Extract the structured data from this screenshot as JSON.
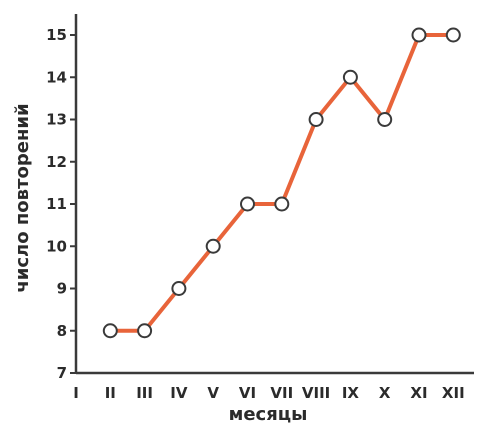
{
  "chart_data": {
    "type": "line",
    "xlabel": "месяцы",
    "ylabel": "число повторений",
    "categories": [
      "I",
      "II",
      "III",
      "IV",
      "V",
      "VI",
      "VII",
      "VIII",
      "IX",
      "X",
      "XI",
      "XII"
    ],
    "ylim": [
      7,
      15
    ],
    "yticks": [
      7,
      8,
      9,
      10,
      11,
      12,
      13,
      14,
      15
    ],
    "grid": false,
    "series": [
      {
        "x": [
          "II",
          "III",
          "IV",
          "V",
          "VI",
          "VII",
          "VIII",
          "IX",
          "X",
          "XI",
          "XII"
        ],
        "values": [
          8,
          8,
          9,
          10,
          11,
          11,
          13,
          14,
          13,
          15,
          15
        ]
      }
    ],
    "colors": {
      "line": "#e8643a",
      "marker_fill": "#ffffff",
      "marker_stroke": "#3a3a3a",
      "axis": "#3a3a3a",
      "text": "#2b2b2b"
    }
  }
}
